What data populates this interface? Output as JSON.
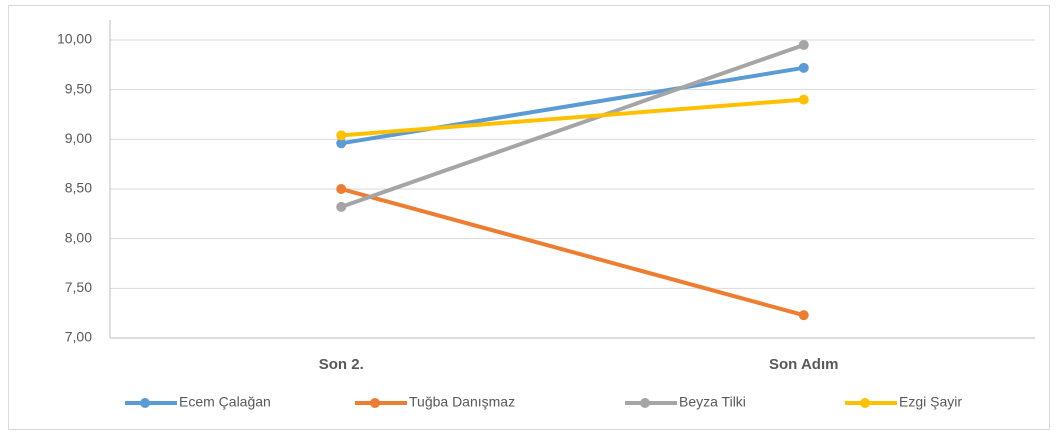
{
  "chart_data": {
    "type": "line",
    "categories": [
      "Son 2.",
      "Son Adım"
    ],
    "series": [
      {
        "name": "Ecem Çalağan",
        "color": "#5b9bd5",
        "values": [
          8.96,
          9.72
        ]
      },
      {
        "name": "Tuğba Danışmaz",
        "color": "#ed7d31",
        "values": [
          8.5,
          7.23
        ]
      },
      {
        "name": "Beyza Tilki",
        "color": "#a5a5a5",
        "values": [
          8.32,
          9.95
        ]
      },
      {
        "name": "Ezgi Şayir",
        "color": "#ffc000",
        "values": [
          9.04,
          9.4
        ]
      }
    ],
    "ylim": [
      7,
      10
    ],
    "yticks": [
      {
        "value": 7,
        "label": "7,00"
      },
      {
        "value": 7.5,
        "label": "7,50"
      },
      {
        "value": 8,
        "label": "8,00"
      },
      {
        "value": 8.5,
        "label": "8,50"
      },
      {
        "value": 9,
        "label": "9,00"
      },
      {
        "value": 9.5,
        "label": "9,50"
      },
      {
        "value": 10,
        "label": "10,00"
      }
    ],
    "grid": true,
    "legend": "bottom"
  }
}
